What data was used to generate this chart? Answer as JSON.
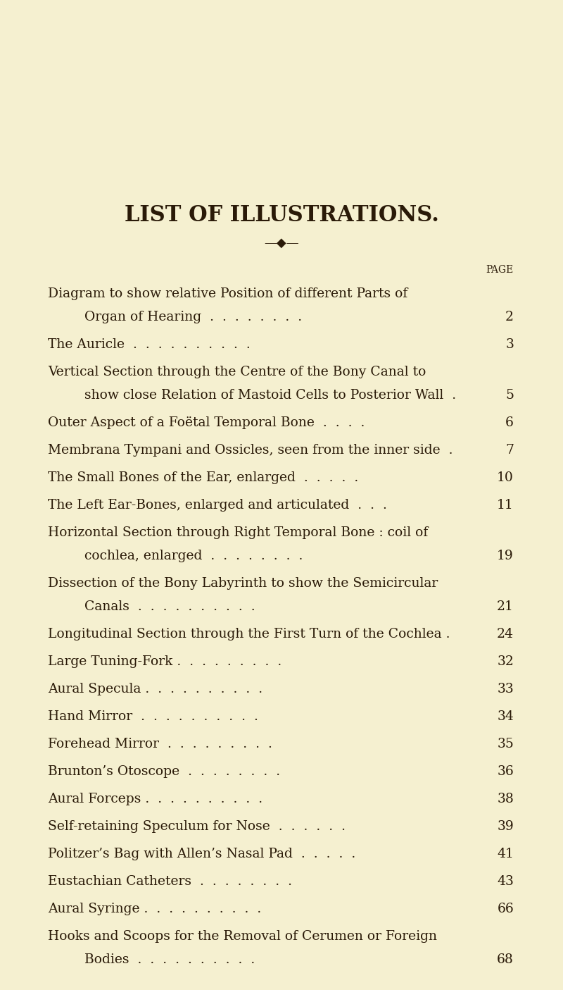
{
  "bg_color": "#f5f0d0",
  "title": "LIST OF ILLUSTRATIONS.",
  "title_fontsize": 22,
  "text_color": "#2a1a08",
  "page_label": "PAGE",
  "entries": [
    {
      "line1": "Diagram to show relative Position of different Parts of",
      "line2": "Organ of Hearing  .  .  .  .  .  .  .  .",
      "page": "2"
    },
    {
      "line1": "The Auricle  .  .  .  .  .  .  .  .  .  .",
      "page": "3"
    },
    {
      "line1": "Vertical Section through the Centre of the Bony Canal to",
      "line2": "show close Relation of Mastoid Cells to Posterior Wall  .",
      "page": "5"
    },
    {
      "line1": "Outer Aspect of a Foëtal Temporal Bone  .  .  .  .",
      "page": "6"
    },
    {
      "line1": "Membrana Tympani and Ossicles, seen from the inner side  .",
      "page": "7"
    },
    {
      "line1": "The Small Bones of the Ear, enlarged  .  .  .  .  .",
      "page": "10"
    },
    {
      "line1": "The Left Ear-Bones, enlarged and articulated  .  .  .",
      "page": "11"
    },
    {
      "line1": "Horizontal Section through Right Temporal Bone : coil of",
      "line2": "cochlea, enlarged  .  .  .  .  .  .  .  .",
      "page": "19"
    },
    {
      "line1": "Dissection of the Bony Labyrinth to show the Semicircular",
      "line2": "Canals  .  .  .  .  .  .  .  .  .  .",
      "page": "21"
    },
    {
      "line1": "Longitudinal Section through the First Turn of the Cochlea .",
      "page": "24"
    },
    {
      "line1": "Large Tuning-Fork .  .  .  .  .  .  .  .  .",
      "page": "32"
    },
    {
      "line1": "Aural Specula .  .  .  .  .  .  .  .  .  .",
      "page": "33"
    },
    {
      "line1": "Hand Mirror  .  .  .  .  .  .  .  .  .  .",
      "page": "34"
    },
    {
      "line1": "Forehead Mirror  .  .  .  .  .  .  .  .  .",
      "page": "35"
    },
    {
      "line1": "Brunton’s Otoscope  .  .  .  .  .  .  .  .",
      "page": "36"
    },
    {
      "line1": "Aural Forceps .  .  .  .  .  .  .  .  .  .",
      "page": "38"
    },
    {
      "line1": "Self-retaining Speculum for Nose  .  .  .  .  .  .",
      "page": "39"
    },
    {
      "line1": "Politzer’s Bag with Allen’s Nasal Pad  .  .  .  .  .",
      "page": "41"
    },
    {
      "line1": "Eustachian Catheters  .  .  .  .  .  .  .  .",
      "page": "43"
    },
    {
      "line1": "Aural Syringe .  .  .  .  .  .  .  .  .  .",
      "page": "66"
    },
    {
      "line1": "Hooks and Scoops for the Removal of Cerumen or Foreign",
      "line2": "Bodies  .  .  .  .  .  .  .  .  .  .",
      "page": "68"
    }
  ]
}
